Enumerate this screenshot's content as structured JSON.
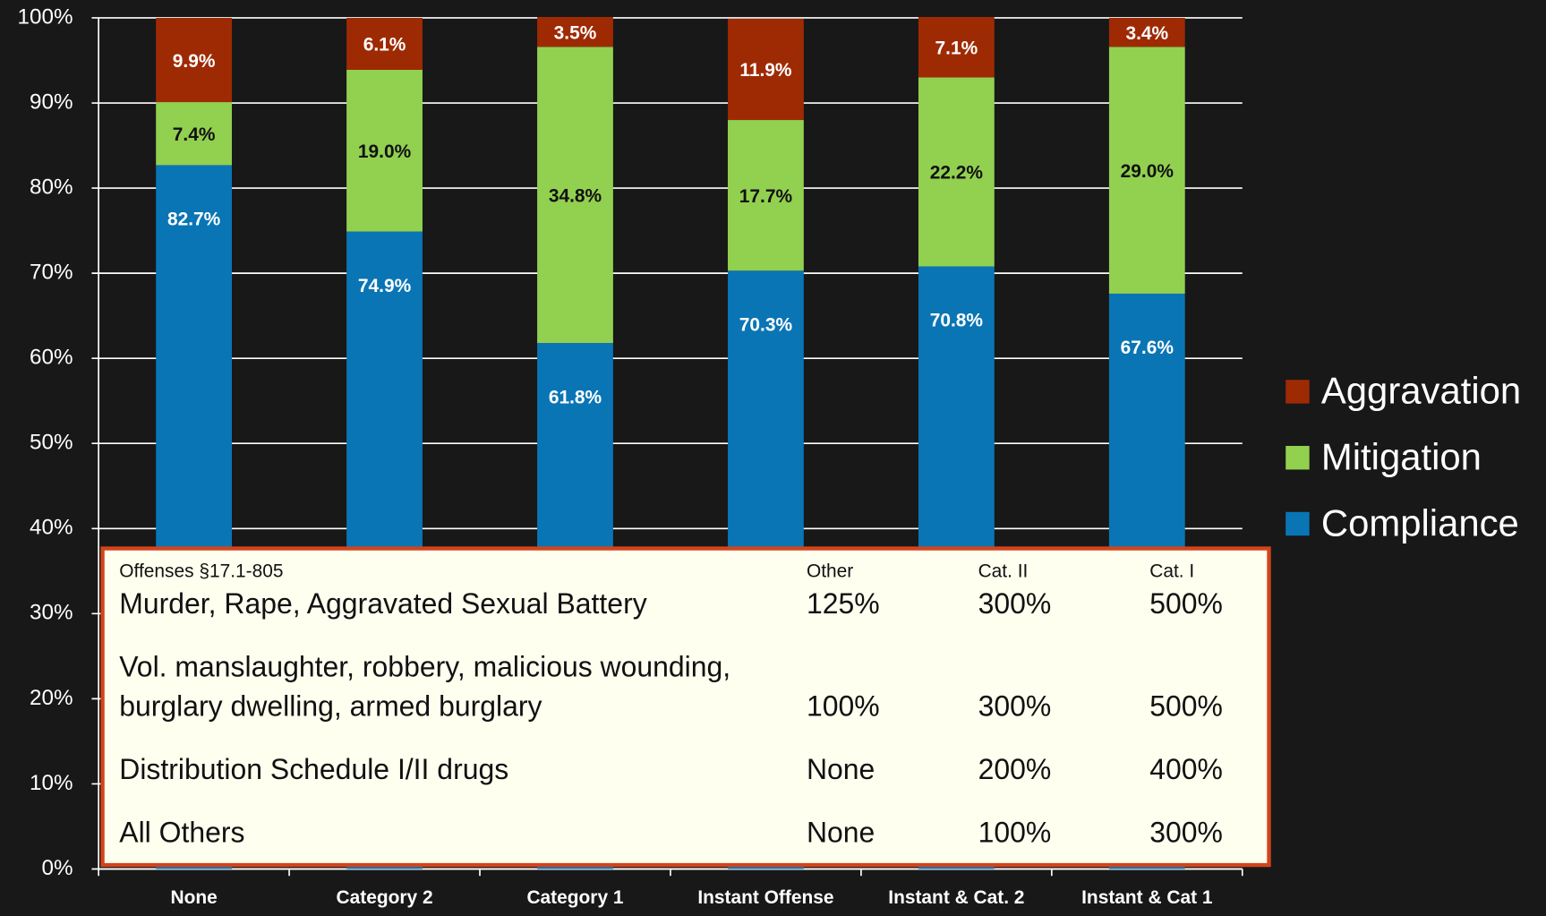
{
  "chart_data": {
    "type": "bar",
    "stacked": true,
    "grid": true,
    "legend": "right",
    "categories": [
      "None",
      "Category 2",
      "Category 1",
      "Instant Offense",
      "Instant & Cat. 2",
      "Instant & Cat 1"
    ],
    "series": [
      {
        "name": "Compliance",
        "color": "#0a75b5",
        "label_color": "#ffffff",
        "values": [
          82.7,
          74.9,
          61.8,
          70.3,
          70.8,
          67.6
        ],
        "value_labels": [
          "82.7%",
          "74.9%",
          "61.8%",
          "70.3%",
          "70.8%",
          "67.6%"
        ]
      },
      {
        "name": "Mitigation",
        "color": "#92d050",
        "label_color": "#111111",
        "values": [
          7.4,
          19.0,
          34.8,
          17.7,
          22.2,
          29.0
        ],
        "value_labels": [
          "7.4%",
          "19.0%",
          "34.8%",
          "17.7%",
          "22.2%",
          "29.0%"
        ]
      },
      {
        "name": "Aggravation",
        "color": "#9e2a04",
        "label_color": "#ffffff",
        "values": [
          9.9,
          6.1,
          3.5,
          11.9,
          7.1,
          3.4
        ],
        "value_labels": [
          "9.9%",
          "6.1%",
          "3.5%",
          "11.9%",
          "7.1%",
          "3.4%"
        ]
      }
    ],
    "ylim": [
      0,
      100
    ],
    "yticks": [
      {
        "value": 0,
        "label": "0%"
      },
      {
        "value": 10,
        "label": "10%"
      },
      {
        "value": 20,
        "label": "20%"
      },
      {
        "value": 30,
        "label": "30%"
      },
      {
        "value": 40,
        "label": "40%"
      },
      {
        "value": 50,
        "label": "50%"
      },
      {
        "value": 60,
        "label": "60%"
      },
      {
        "value": 70,
        "label": "70%"
      },
      {
        "value": 80,
        "label": "80%"
      },
      {
        "value": 90,
        "label": "90%"
      },
      {
        "value": 100,
        "label": "100%"
      }
    ]
  },
  "table": {
    "header": [
      "Offenses §17.1-805",
      "Other",
      "Cat. II",
      "Cat. I"
    ],
    "rows": [
      [
        [
          "Murder, Rape, Aggravated Sexual Battery"
        ],
        "125%",
        "300%",
        "500%"
      ],
      [
        [
          "Vol. manslaughter, robbery, malicious wounding,",
          "burglary dwelling, armed burglary"
        ],
        "100%",
        "300%",
        "500%"
      ],
      [
        [
          "Distribution Schedule I/II drugs"
        ],
        "None",
        "200%",
        "400%"
      ],
      [
        [
          "All Others"
        ],
        "None",
        "100%",
        "300%"
      ]
    ]
  }
}
